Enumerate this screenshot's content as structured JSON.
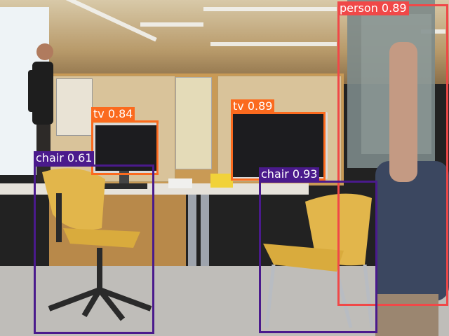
{
  "image": {
    "description_colors": {
      "person": "#f04848",
      "tv": "#fb6a1e",
      "chair": "#4a1a8c"
    }
  },
  "detections": [
    {
      "class_label": "person 0.89",
      "color": "#f04848"
    },
    {
      "class_label": "tv 0.84",
      "color": "#fb6a1e"
    },
    {
      "class_label": "tv 0.89",
      "color": "#fb6a1e"
    },
    {
      "class_label": "chair 0.61",
      "color": "#4a1a8c"
    },
    {
      "class_label": "chair 0.93",
      "color": "#4a1a8c"
    }
  ]
}
